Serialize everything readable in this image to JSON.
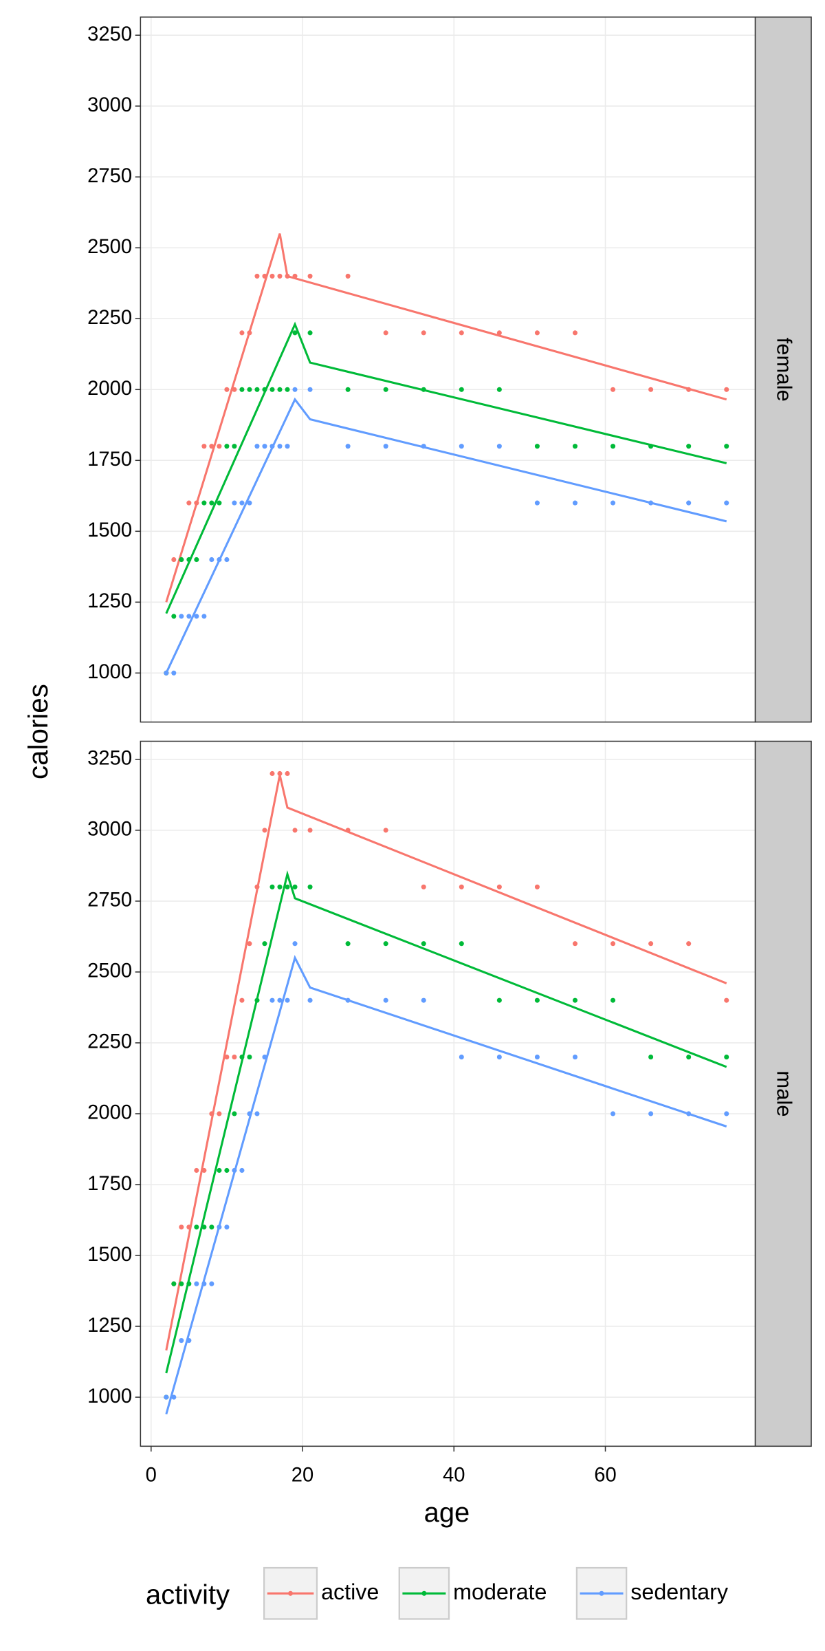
{
  "figure": {
    "xlabel": "age",
    "ylabel": "calories",
    "legend_title": "activity"
  },
  "chart_data": [
    {
      "type": "scatter",
      "facet": "female",
      "grid": true,
      "x": [
        2,
        3,
        4,
        5,
        6,
        7,
        8,
        9,
        10,
        11,
        12,
        13,
        14,
        15,
        16,
        17,
        18,
        19,
        21,
        26,
        31,
        36,
        41,
        46,
        51,
        56,
        61,
        66,
        71,
        76
      ],
      "xlim": [
        -1.4,
        79.8
      ],
      "xticks": [
        0,
        20,
        40,
        60
      ],
      "ylim": [
        827,
        3314
      ],
      "yticks": [
        1000,
        1250,
        1500,
        1750,
        2000,
        2250,
        2500,
        2750,
        3000,
        3250
      ],
      "series": [
        {
          "name": "active",
          "color": "#F8766D",
          "values": [
            1000,
            1400,
            1400,
            1600,
            1600,
            1800,
            1800,
            1800,
            2000,
            2000,
            2200,
            2200,
            2400,
            2400,
            2400,
            2400,
            2400,
            2400,
            2400,
            2400,
            2200,
            2200,
            2200,
            2200,
            2200,
            2200,
            2000,
            2000,
            2000,
            2000
          ],
          "line": {
            "x": [
              2,
              17,
              18,
              76
            ],
            "values": [
              1250,
              2550,
              2400,
              1965
            ]
          }
        },
        {
          "name": "moderate",
          "color": "#00BA38",
          "values": [
            1000,
            1200,
            1400,
            1400,
            1400,
            1600,
            1600,
            1600,
            1800,
            1800,
            2000,
            2000,
            2000,
            2000,
            2000,
            2000,
            2000,
            2200,
            2200,
            2000,
            2000,
            2000,
            2000,
            2000,
            1800,
            1800,
            1800,
            1800,
            1800,
            1800
          ],
          "line": {
            "x": [
              2,
              19,
              21,
              76
            ],
            "values": [
              1210,
              2230,
              2095,
              1740
            ]
          }
        },
        {
          "name": "sedentary",
          "color": "#619CFF",
          "values": [
            1000,
            1000,
            1200,
            1200,
            1200,
            1200,
            1400,
            1400,
            1400,
            1600,
            1600,
            1600,
            1800,
            1800,
            1800,
            1800,
            1800,
            2000,
            2000,
            1800,
            1800,
            1800,
            1800,
            1800,
            1600,
            1600,
            1600,
            1600,
            1600,
            1600
          ],
          "line": {
            "x": [
              2,
              19,
              21,
              76
            ],
            "values": [
              1000,
              1965,
              1895,
              1535
            ]
          }
        }
      ]
    },
    {
      "type": "scatter",
      "facet": "male",
      "grid": true,
      "x": [
        2,
        3,
        4,
        5,
        6,
        7,
        8,
        9,
        10,
        11,
        12,
        13,
        14,
        15,
        16,
        17,
        18,
        19,
        21,
        26,
        31,
        36,
        41,
        46,
        51,
        56,
        61,
        66,
        71,
        76
      ],
      "xlim": [
        -1.4,
        79.8
      ],
      "xticks": [
        0,
        20,
        40,
        60
      ],
      "ylim": [
        827,
        3314
      ],
      "yticks": [
        1000,
        1250,
        1500,
        1750,
        2000,
        2250,
        2500,
        2750,
        3000,
        3250
      ],
      "series": [
        {
          "name": "active",
          "color": "#F8766D",
          "values": [
            1000,
            1400,
            1600,
            1600,
            1800,
            1800,
            2000,
            2000,
            2200,
            2200,
            2400,
            2600,
            2800,
            3000,
            3200,
            3200,
            3200,
            3000,
            3000,
            3000,
            3000,
            2800,
            2800,
            2800,
            2800,
            2600,
            2600,
            2600,
            2600,
            2400
          ],
          "line": {
            "x": [
              2,
              17,
              18,
              76
            ],
            "values": [
              1165,
              3195,
              3080,
              2460
            ]
          }
        },
        {
          "name": "moderate",
          "color": "#00BA38",
          "values": [
            1000,
            1400,
            1400,
            1400,
            1600,
            1600,
            1600,
            1800,
            1800,
            2000,
            2200,
            2200,
            2400,
            2600,
            2800,
            2800,
            2800,
            2800,
            2800,
            2600,
            2600,
            2600,
            2600,
            2400,
            2400,
            2400,
            2400,
            2200,
            2200,
            2200
          ],
          "line": {
            "x": [
              2,
              18,
              19,
              76
            ],
            "values": [
              1085,
              2845,
              2760,
              2165
            ]
          }
        },
        {
          "name": "sedentary",
          "color": "#619CFF",
          "values": [
            1000,
            1000,
            1200,
            1200,
            1400,
            1400,
            1400,
            1600,
            1600,
            1800,
            1800,
            2000,
            2000,
            2200,
            2400,
            2400,
            2400,
            2600,
            2400,
            2400,
            2400,
            2400,
            2200,
            2200,
            2200,
            2200,
            2000,
            2000,
            2000,
            2000
          ],
          "line": {
            "x": [
              2,
              19,
              21,
              76
            ],
            "values": [
              940,
              2550,
              2445,
              1955
            ]
          }
        }
      ]
    }
  ]
}
